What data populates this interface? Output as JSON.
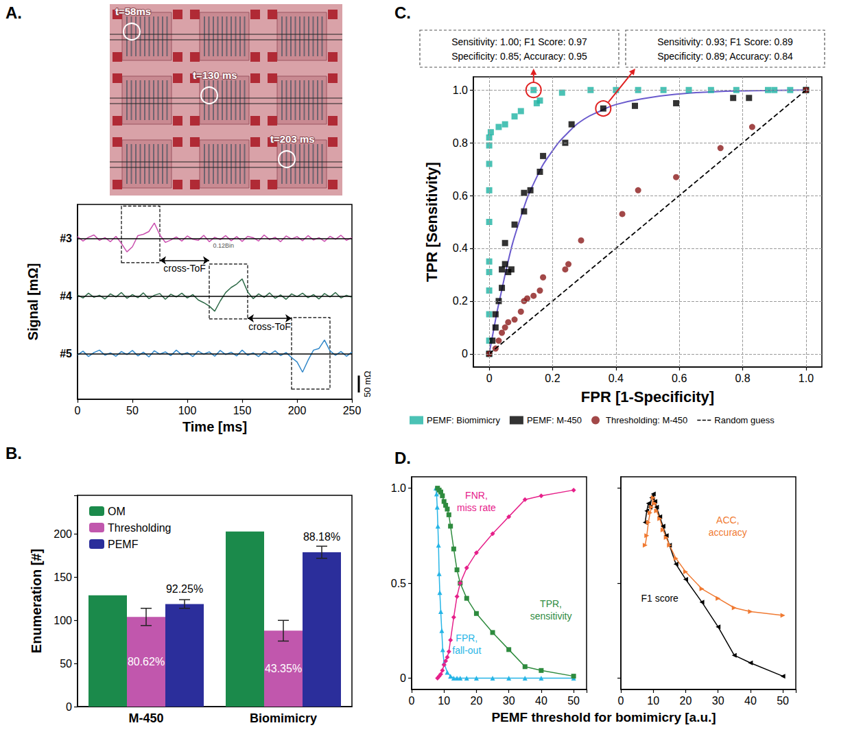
{
  "chart_data": [
    {
      "panel": "A.",
      "type": "image",
      "annotations": [
        "t=58ms",
        "t=130 ms",
        "t=203 ms"
      ]
    },
    {
      "type": "line",
      "x_label": "Time [ms]",
      "y_label": "Signal [mΩ]",
      "xlim": [
        0,
        250
      ],
      "xticks": [
        0,
        50,
        100,
        150,
        200,
        250
      ],
      "ylim": [
        -135,
        440
      ],
      "tick_labels": "x",
      "x": [
        0,
        5,
        10,
        15,
        20,
        25,
        30,
        35,
        40,
        45,
        50,
        55,
        60,
        65,
        70,
        75,
        80,
        85,
        90,
        95,
        100,
        105,
        110,
        115,
        120,
        125,
        130,
        135,
        140,
        145,
        150,
        155,
        160,
        165,
        170,
        175,
        180,
        185,
        190,
        195,
        200,
        205,
        210,
        215,
        220,
        225,
        230,
        235,
        240,
        245,
        250
      ],
      "series": [
        {
          "name": "#3",
          "color": "#c94fae",
          "baseline": 340,
          "values": [
            345,
            332,
            343,
            350,
            334,
            342,
            330,
            346,
            325,
            300,
            315,
            348,
            352,
            360,
            385,
            350,
            328,
            335,
            344,
            332,
            347,
            337,
            334,
            349,
            330,
            343,
            336,
            348,
            333,
            345,
            331,
            346,
            342,
            332,
            350,
            336,
            343,
            330,
            347,
            338,
            345,
            333,
            348,
            335,
            342,
            331,
            346,
            337,
            349,
            334,
            342
          ]
        },
        {
          "name": "#4",
          "color": "#2e6a48",
          "baseline": 170,
          "values": [
            173,
            164,
            178,
            166,
            172,
            161,
            176,
            167,
            180,
            163,
            174,
            165,
            179,
            162,
            172,
            177,
            160,
            175,
            167,
            178,
            164,
            174,
            158,
            150,
            140,
            125,
            155,
            180,
            195,
            205,
            220,
            182,
            162,
            176,
            166,
            179,
            163,
            173,
            160,
            176,
            168,
            178,
            165,
            174,
            161,
            177,
            167,
            180,
            164,
            172,
            166
          ]
        },
        {
          "name": "#5",
          "color": "#2f86c8",
          "baseline": 0,
          "values": [
            -4,
            7,
            -9,
            3,
            10,
            -5,
            2,
            -8,
            6,
            -3,
            9,
            -7,
            4,
            -10,
            8,
            -2,
            5,
            -6,
            10,
            -4,
            3,
            -9,
            7,
            -2,
            5,
            -8,
            9,
            -3,
            4,
            -7,
            10,
            -5,
            2,
            -9,
            6,
            -3,
            8,
            -6,
            3,
            -12,
            -25,
            -55,
            -20,
            10,
            15,
            40,
            8,
            -5,
            6,
            -8,
            4
          ]
        }
      ],
      "boxes": [
        {
          "x": [
            40,
            75
          ],
          "y": [
            268,
            435
          ]
        },
        {
          "x": [
            120,
            155
          ],
          "y": [
            102,
            264
          ]
        },
        {
          "x": [
            195,
            230
          ],
          "y": [
            -105,
            106
          ]
        }
      ],
      "annotations": [
        {
          "text": "cross-ToF",
          "x": [
            75,
            120
          ],
          "y": 275
        },
        {
          "text": "cross-ToF",
          "x": [
            155,
            195
          ],
          "y": 104
        },
        {
          "text": "0.12Bin",
          "x": 133,
          "y": 318
        }
      ],
      "scale_bar": {
        "value": 50,
        "label": "50 mΩ"
      }
    },
    {
      "panel": "B.",
      "type": "bar",
      "y_label": "Enumeration [#]",
      "categories": [
        "M-450",
        "Biomimicry"
      ],
      "ylim": [
        0,
        245
      ],
      "yticks": [
        0,
        50,
        100,
        150,
        200
      ],
      "legend": "top-left",
      "series": [
        {
          "name": "OM",
          "color": "#1b8a4b",
          "values": [
            129,
            203
          ]
        },
        {
          "name": "Thresholding",
          "color": "#c157ad",
          "values": [
            104,
            88
          ],
          "errors": [
            10,
            12
          ],
          "ratio_labels": [
            "80.62%",
            "43.35%"
          ]
        },
        {
          "name": "PEMF",
          "color": "#2b2e9b",
          "values": [
            119,
            179
          ],
          "errors": [
            5,
            7
          ],
          "ratio_labels": [
            "92.25%",
            "88.18%"
          ]
        }
      ]
    },
    {
      "panel": "C.",
      "type": "scatter",
      "x_label": "FPR [1-Specificity]",
      "y_label": "TPR [Sensitivity]",
      "xlim": [
        -0.05,
        1.05
      ],
      "xticks": [
        0,
        0.2,
        0.4,
        0.6,
        0.8,
        {
          "value": 1,
          "label": "1.0"
        }
      ],
      "ylim": [
        -0.05,
        1.05
      ],
      "yticks": [
        0,
        0.2,
        0.4,
        0.6,
        0.8,
        {
          "value": 1,
          "label": "1.0"
        }
      ],
      "grid": true,
      "legend": "bottom",
      "series": [
        {
          "name": "PEMF: Biomimicry",
          "color": "#1eb3a3",
          "marker": "square",
          "x": [
            0,
            0,
            0,
            0,
            0,
            0,
            0,
            0,
            0,
            0,
            0,
            0.005,
            0.03,
            0.05,
            0.08,
            0.1,
            0.15,
            0.16,
            0.14,
            0.23,
            0.32,
            0.4,
            0.47,
            0.55,
            0.63,
            0.7,
            0.78,
            0.88,
            0.9,
            0.95,
            1
          ],
          "values": [
            0,
            0.05,
            0.15,
            0.24,
            0.31,
            0.35,
            0.5,
            0.62,
            0.72,
            0.79,
            0.82,
            0.84,
            0.86,
            0.87,
            0.9,
            0.92,
            0.95,
            0.96,
            1,
            0.99,
            1,
            1,
            1,
            1,
            1,
            1,
            1,
            1,
            1,
            1,
            1
          ]
        },
        {
          "name": "PEMF: M-450",
          "color": "#000000",
          "marker": "square",
          "x": [
            0,
            0.01,
            0.02,
            0.02,
            0.03,
            0.04,
            0.04,
            0.05,
            0.06,
            0.07,
            0.05,
            0.08,
            0.11,
            0.11,
            0.13,
            0.16,
            0.17,
            0.24,
            0.26,
            0.36,
            0.46,
            0.59,
            0.77,
            0.82,
            1
          ],
          "values": [
            0,
            0.05,
            0.1,
            0.15,
            0.2,
            0.25,
            0.32,
            0.34,
            0.31,
            0.32,
            0.42,
            0.49,
            0.54,
            0.61,
            0.62,
            0.69,
            0.75,
            0.8,
            0.87,
            0.93,
            0.94,
            0.95,
            0.97,
            0.97,
            1
          ],
          "fit": {
            "color": "#6a5acd",
            "x": [
              0,
              0.05,
              0.1,
              0.15,
              0.2,
              0.25,
              0.3,
              0.35,
              0.4,
              0.5,
              0.6,
              0.7,
              0.8,
              1
            ],
            "values": [
              0,
              0.3,
              0.52,
              0.67,
              0.77,
              0.84,
              0.89,
              0.92,
              0.945,
              0.97,
              0.985,
              0.993,
              0.997,
              1
            ]
          }
        },
        {
          "name": "Thresholding: M-450",
          "color": "#8b1a1a",
          "marker": "circle",
          "x": [
            0,
            0.02,
            0.03,
            0.04,
            0.05,
            0.06,
            0.08,
            0.1,
            0.11,
            0.12,
            0.14,
            0.16,
            0.17,
            0.24,
            0.25,
            0.29,
            0.42,
            0.47,
            0.59,
            0.73,
            0.83,
            1
          ],
          "values": [
            0,
            0.02,
            0.05,
            0.08,
            0.1,
            0.12,
            0.13,
            0.16,
            0.2,
            0.21,
            0.22,
            0.24,
            0.29,
            0.32,
            0.34,
            0.43,
            0.53,
            0.62,
            0.67,
            0.78,
            0.86,
            1
          ]
        },
        {
          "name": "Random guess",
          "type": "line",
          "line_style": "dashed",
          "color": "#000000",
          "x": [
            0,
            1
          ],
          "values": [
            0,
            1
          ]
        }
      ],
      "callouts": [
        {
          "x": 0.14,
          "y": 1.0,
          "text": [
            "Sensitivity: 1.00; F1 Score: 0.97",
            "Specificity: 0.85; Accuracy: 0.95"
          ]
        },
        {
          "x": 0.36,
          "y": 0.93,
          "text": [
            "Sensitivity: 0.93; F1 Score: 0.89",
            "Specificity: 0.89; Accuracy: 0.84"
          ]
        }
      ]
    },
    {
      "panel": "D.",
      "type": "line",
      "x_label": "PEMF threshold for bomimicry [a.u.]",
      "subplots": [
        {
          "xlim": [
            0,
            54
          ],
          "xticks": [
            0,
            10,
            20,
            30,
            40,
            50
          ],
          "ylim": [
            -0.06,
            1.06
          ],
          "yticks": [
            0,
            0.5,
            {
              "value": 1,
              "label": "1.0"
            }
          ],
          "series": [
            {
              "name": "FPR, fall-out",
              "color": "#27b5e6",
              "marker": "triangle",
              "label_at": [
                17,
                0.18
              ],
              "x": [
                7.5,
                7.7,
                7.9,
                8.1,
                8.3,
                8.5,
                8.7,
                9,
                9.3,
                9.6,
                10,
                11,
                12,
                13,
                14,
                15,
                17,
                20,
                25,
                30,
                35,
                40,
                50
              ],
              "values": [
                1.0,
                0.97,
                0.9,
                0.8,
                0.7,
                0.55,
                0.45,
                0.35,
                0.25,
                0.15,
                0.08,
                0.03,
                0.01,
                0,
                0,
                0,
                0,
                0,
                0,
                0,
                0,
                0,
                0
              ]
            },
            {
              "name": "TPR, sensitivity",
              "color": "#2e8b3e",
              "marker": "square",
              "label_at": [
                43,
                0.36
              ],
              "x": [
                8,
                8.5,
                9,
                9.5,
                10,
                10.5,
                11,
                11.5,
                12,
                13,
                14,
                15,
                17,
                20,
                25,
                30,
                35,
                40,
                50
              ],
              "values": [
                1.0,
                0.99,
                0.98,
                0.96,
                0.93,
                0.91,
                0.89,
                0.86,
                0.8,
                0.68,
                0.57,
                0.5,
                0.42,
                0.34,
                0.24,
                0.15,
                0.06,
                0.04,
                0.01
              ]
            },
            {
              "name": "FNR, miss rate",
              "color": "#e6208a",
              "marker": "diamond",
              "label_at": [
                20,
                0.93
              ],
              "x": [
                8,
                8.5,
                9,
                9.5,
                10,
                10.5,
                11,
                11.5,
                12,
                13,
                14,
                15,
                17,
                20,
                25,
                30,
                35,
                40,
                50
              ],
              "values": [
                0,
                0.01,
                0.02,
                0.04,
                0.07,
                0.09,
                0.11,
                0.14,
                0.2,
                0.32,
                0.43,
                0.5,
                0.58,
                0.66,
                0.76,
                0.85,
                0.94,
                0.96,
                0.99
              ]
            }
          ]
        },
        {
          "xlim": [
            0,
            54
          ],
          "xticks": [
            0,
            10,
            20,
            30,
            40,
            50
          ],
          "ylim": [
            -0.06,
            1.06
          ],
          "yticks": [
            0,
            0.5,
            {
              "value": 1,
              "label": "1.0"
            }
          ],
          "tick_labels": "x",
          "series": [
            {
              "name": "F1 score",
              "color": "#000000",
              "marker": "triangle-left",
              "label_at": [
                12,
                0.42
              ],
              "x": [
                7.5,
                8,
                8.5,
                9,
                9.5,
                10,
                10.5,
                11,
                12,
                13,
                14,
                15,
                17,
                20,
                25,
                30,
                35,
                40,
                50
              ],
              "values": [
                0.82,
                0.88,
                0.92,
                0.9,
                0.95,
                0.97,
                0.93,
                0.9,
                0.85,
                0.8,
                0.75,
                0.7,
                0.6,
                0.52,
                0.4,
                0.27,
                0.12,
                0.08,
                0.01
              ]
            },
            {
              "name": "ACC, accuracy",
              "color": "#f07a32",
              "marker": "triangle-right",
              "label_at": [
                33,
                0.8
              ],
              "x": [
                7.5,
                8,
                8.5,
                9,
                9.5,
                10,
                10.5,
                11,
                12,
                13,
                14,
                15,
                17,
                20,
                25,
                30,
                35,
                40,
                50
              ],
              "values": [
                0.7,
                0.75,
                0.82,
                0.87,
                0.9,
                0.95,
                0.92,
                0.88,
                0.84,
                0.78,
                0.74,
                0.7,
                0.63,
                0.56,
                0.47,
                0.42,
                0.37,
                0.35,
                0.33
              ]
            }
          ]
        }
      ]
    }
  ]
}
